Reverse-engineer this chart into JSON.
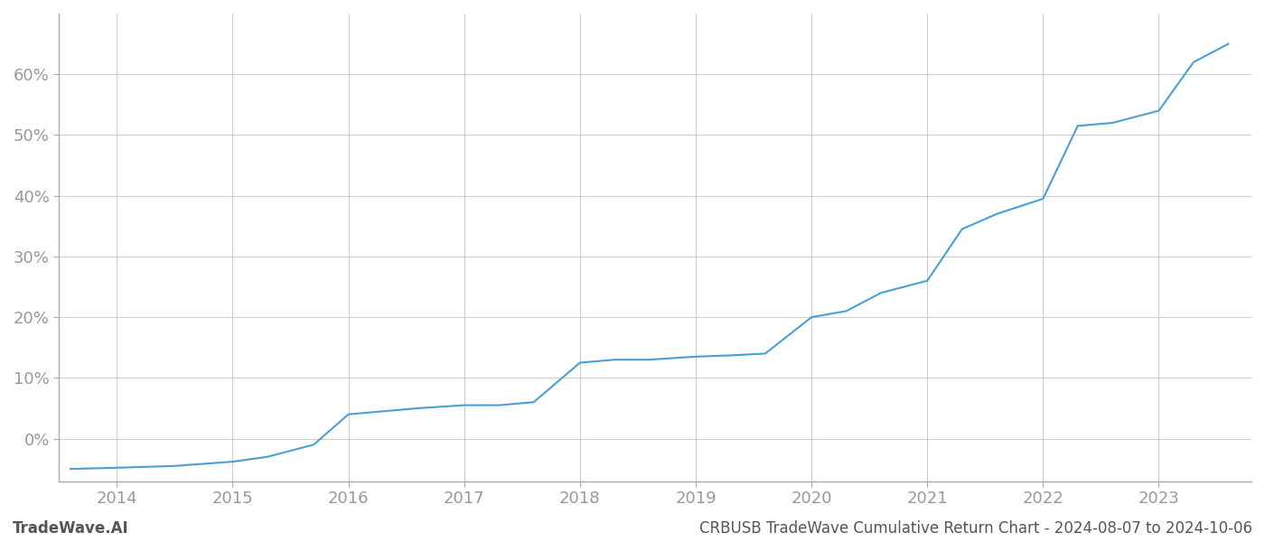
{
  "title": "CRBUSB TradeWave Cumulative Return Chart - 2024-08-07 to 2024-10-06",
  "watermark": "TradeWave.AI",
  "x_values": [
    2013.6,
    2014.0,
    2014.5,
    2015.0,
    2015.3,
    2015.7,
    2016.0,
    2016.3,
    2016.6,
    2017.0,
    2017.3,
    2017.6,
    2018.0,
    2018.3,
    2018.6,
    2019.0,
    2019.3,
    2019.6,
    2020.0,
    2020.3,
    2020.6,
    2021.0,
    2021.3,
    2021.6,
    2022.0,
    2022.3,
    2022.6,
    2023.0,
    2023.3,
    2023.6
  ],
  "y_values": [
    -5.0,
    -4.8,
    -4.5,
    -3.8,
    -3.0,
    -1.0,
    4.0,
    4.5,
    5.0,
    5.5,
    5.5,
    6.0,
    12.5,
    13.0,
    13.0,
    13.5,
    13.7,
    14.0,
    20.0,
    21.0,
    24.0,
    26.0,
    34.5,
    37.0,
    39.5,
    51.5,
    52.0,
    54.0,
    62.0,
    65.0
  ],
  "line_color": "#4a9fd4",
  "background_color": "#ffffff",
  "grid_color": "#cccccc",
  "text_color": "#999999",
  "footer_color": "#555555",
  "spine_color": "#aaaaaa",
  "xlim": [
    2013.5,
    2023.8
  ],
  "ylim": [
    -7,
    70
  ],
  "yticks": [
    0,
    10,
    20,
    30,
    40,
    50,
    60
  ],
  "ytick_labels": [
    "0%",
    "10%",
    "20%",
    "30%",
    "40%",
    "50%",
    "60%"
  ],
  "xticks": [
    2014,
    2015,
    2016,
    2017,
    2018,
    2019,
    2020,
    2021,
    2022,
    2023
  ],
  "xtick_labels": [
    "2014",
    "2015",
    "2016",
    "2017",
    "2018",
    "2019",
    "2020",
    "2021",
    "2022",
    "2023"
  ],
  "line_width": 1.5,
  "font_size_ticks": 13,
  "font_size_footer": 12
}
